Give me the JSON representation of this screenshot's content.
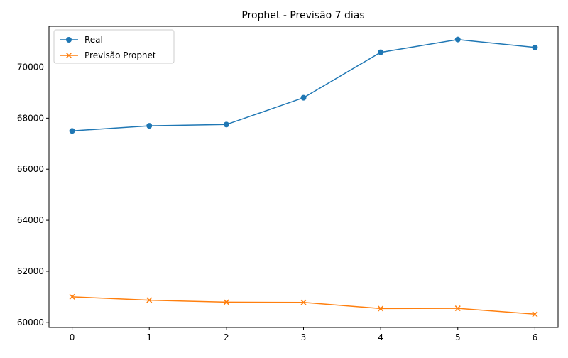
{
  "chart_data": {
    "type": "line",
    "title": "Prophet - Previsão 7 dias",
    "xlabel": "",
    "ylabel": "",
    "x": [
      0,
      1,
      2,
      3,
      4,
      5,
      6
    ],
    "xticks": [
      "0",
      "1",
      "2",
      "3",
      "4",
      "5",
      "6"
    ],
    "yticks": [
      "60000",
      "62000",
      "64000",
      "66000",
      "68000",
      "70000"
    ],
    "xlim": [
      -0.3,
      6.3
    ],
    "ylim": [
      59800,
      71600
    ],
    "grid": false,
    "legend_position": "upper-left",
    "series": [
      {
        "name": "Real",
        "color": "#1f77b4",
        "marker": "circle",
        "values": [
          67500,
          67700,
          67750,
          68800,
          70580,
          71080,
          70770
        ]
      },
      {
        "name": "Previsão Prophet",
        "color": "#ff7f0e",
        "marker": "x",
        "values": [
          61000,
          60870,
          60790,
          60780,
          60540,
          60550,
          60320
        ]
      }
    ]
  }
}
